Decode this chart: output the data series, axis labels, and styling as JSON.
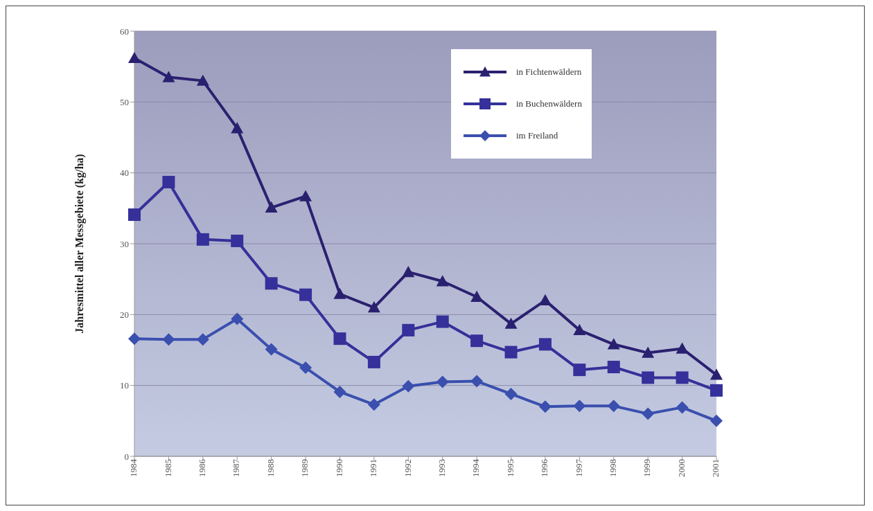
{
  "chart_data": {
    "type": "line",
    "ylabel": "Jahresmittel aller Messgebiete (kg/ha)",
    "categories": [
      "1984",
      "1985",
      "1986",
      "1987",
      "1988",
      "1989",
      "1990",
      "1991",
      "1992",
      "1993",
      "1994",
      "1995",
      "1996",
      "1997",
      "1998",
      "1999",
      "2000",
      "2001"
    ],
    "series": [
      {
        "name": "in Fichtenwäldern",
        "color": "#2a2070",
        "marker": "triangle",
        "values": [
          56.2,
          53.5,
          53.0,
          46.3,
          35.1,
          36.7,
          22.9,
          21.0,
          26.0,
          24.7,
          22.5,
          18.7,
          22.0,
          17.8,
          15.8,
          14.6,
          15.2,
          11.5
        ]
      },
      {
        "name": "in Buchenwäldern",
        "color": "#35309a",
        "marker": "square",
        "values": [
          34.1,
          38.7,
          30.6,
          30.4,
          24.4,
          22.8,
          16.6,
          13.3,
          17.8,
          19.0,
          16.3,
          14.7,
          15.8,
          12.2,
          12.6,
          11.1,
          11.1,
          9.3
        ]
      },
      {
        "name": "im Freiland",
        "color": "#3a4fae",
        "marker": "diamond",
        "values": [
          16.6,
          16.5,
          16.5,
          19.4,
          15.1,
          12.5,
          9.1,
          7.3,
          9.9,
          10.5,
          10.6,
          8.8,
          7.0,
          7.1,
          7.1,
          6.0,
          6.9,
          5.0
        ]
      }
    ],
    "ylim": [
      0,
      60
    ],
    "yticks": [
      0,
      10,
      20,
      30,
      40,
      50,
      60
    ],
    "grid": "y",
    "legend": "top right",
    "line_style": "solid"
  }
}
